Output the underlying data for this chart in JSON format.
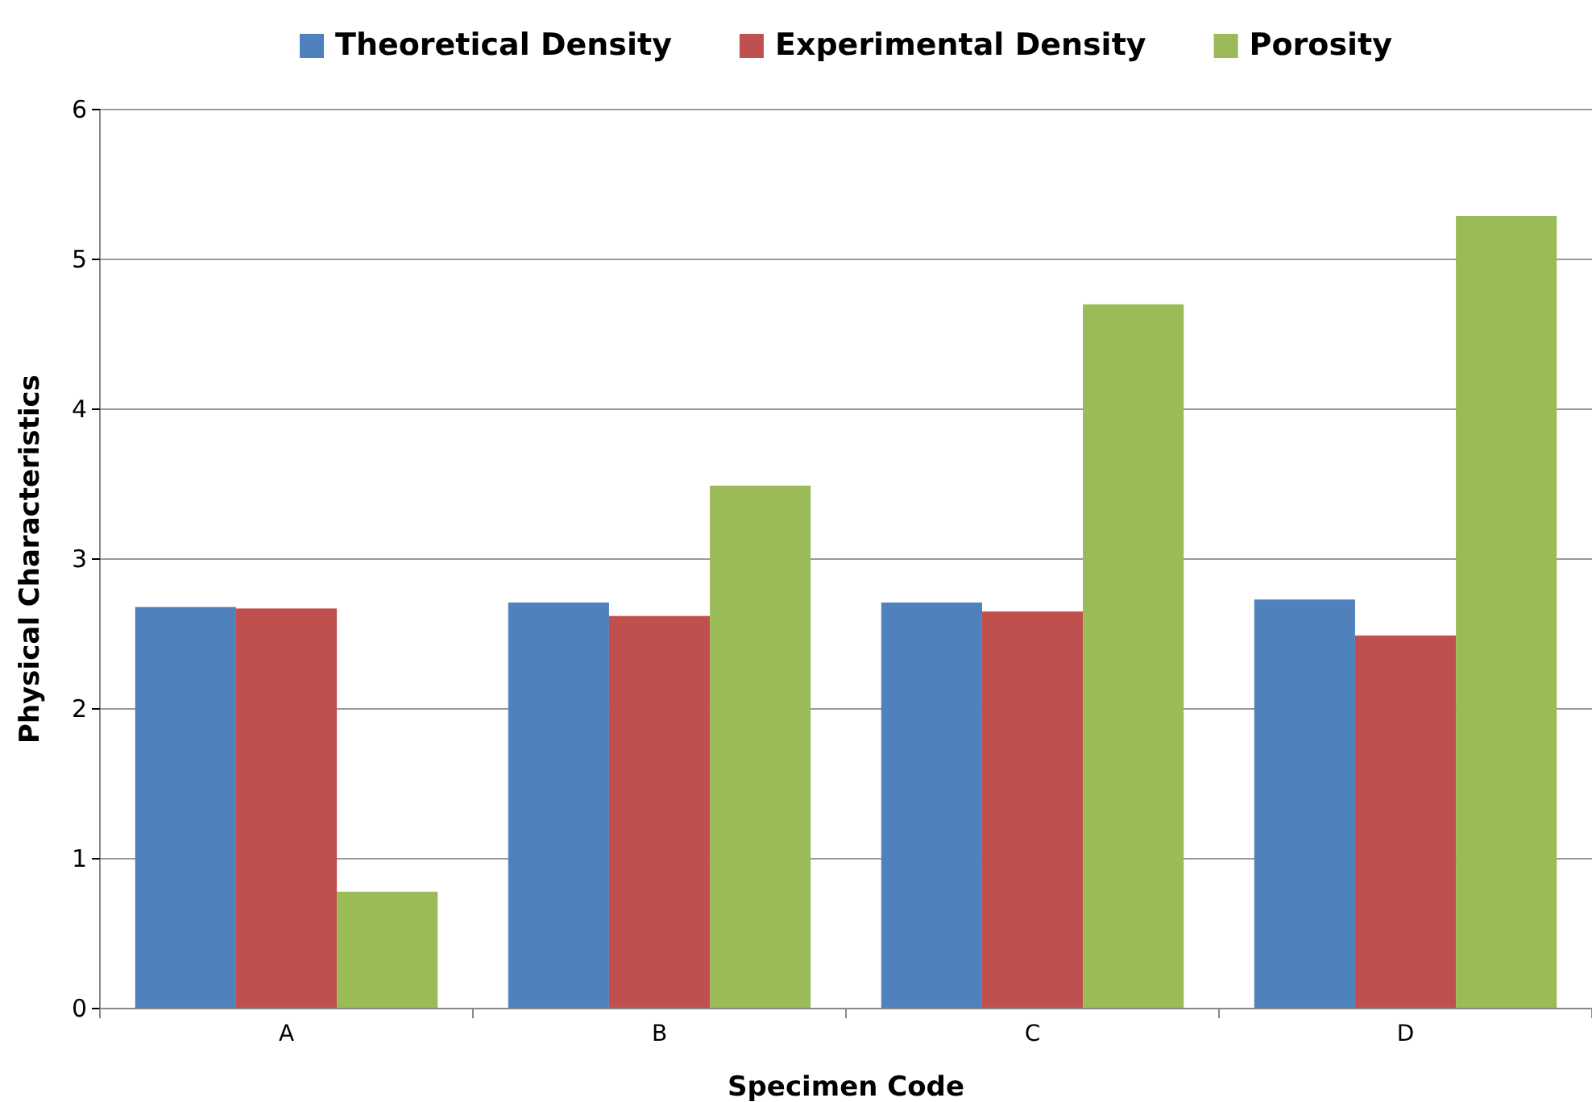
{
  "chart_data": {
    "type": "bar",
    "xlabel": "Specimen Code",
    "ylabel": "Physical Characteristics",
    "categories": [
      "A",
      "B",
      "C",
      "D"
    ],
    "series": [
      {
        "name": "Theoretical Density",
        "color": "#4f81bd",
        "values": [
          2.68,
          2.71,
          2.71,
          2.73
        ]
      },
      {
        "name": "Experimental Density",
        "color": "#c0504d",
        "values": [
          2.67,
          2.62,
          2.65,
          2.49
        ]
      },
      {
        "name": "Porosity",
        "color": "#9bbb59",
        "values": [
          0.78,
          3.49,
          4.7,
          5.29
        ]
      }
    ],
    "ylim": [
      0,
      6
    ],
    "yticks": [
      0,
      1,
      2,
      3,
      4,
      5,
      6
    ],
    "grid": "y",
    "legend": "top"
  }
}
